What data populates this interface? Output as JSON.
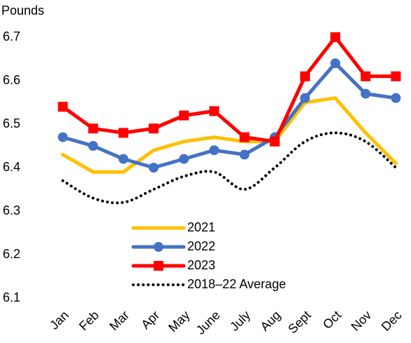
{
  "chart_data": {
    "type": "line",
    "y_axis_label": "Pounds",
    "categories": [
      "Jan",
      "Feb",
      "Mar",
      "Apr",
      "May",
      "June",
      "July",
      "Aug",
      "Sept",
      "Oct",
      "Nov",
      "Dec"
    ],
    "series": [
      {
        "name": "2021",
        "color": "#ffc000",
        "marker": "none",
        "line_style": "solid",
        "values": [
          6.43,
          6.39,
          6.39,
          6.44,
          6.46,
          6.47,
          6.46,
          6.46,
          6.55,
          6.56,
          6.48,
          6.41
        ]
      },
      {
        "name": "2022",
        "color": "#4472c4",
        "marker": "circle",
        "line_style": "solid",
        "values": [
          6.47,
          6.45,
          6.42,
          6.4,
          6.42,
          6.44,
          6.43,
          6.47,
          6.56,
          6.64,
          6.57,
          6.56
        ]
      },
      {
        "name": "2023",
        "color": "#ff0000",
        "marker": "square",
        "line_style": "solid",
        "values": [
          6.54,
          6.49,
          6.48,
          6.49,
          6.52,
          6.53,
          6.47,
          6.46,
          6.61,
          6.7,
          6.61,
          6.61
        ]
      },
      {
        "name": "2018–22 Average",
        "color": "#000000",
        "marker": "none",
        "line_style": "dotted",
        "smooth": true,
        "values": [
          6.37,
          6.33,
          6.32,
          6.35,
          6.38,
          6.39,
          6.35,
          6.4,
          6.46,
          6.48,
          6.46,
          6.4
        ]
      }
    ],
    "ylim": [
      6.1,
      6.7
    ],
    "yticks": [
      6.1,
      6.2,
      6.3,
      6.4,
      6.5,
      6.6,
      6.7
    ],
    "grid": false,
    "legend_position": "bottom"
  }
}
